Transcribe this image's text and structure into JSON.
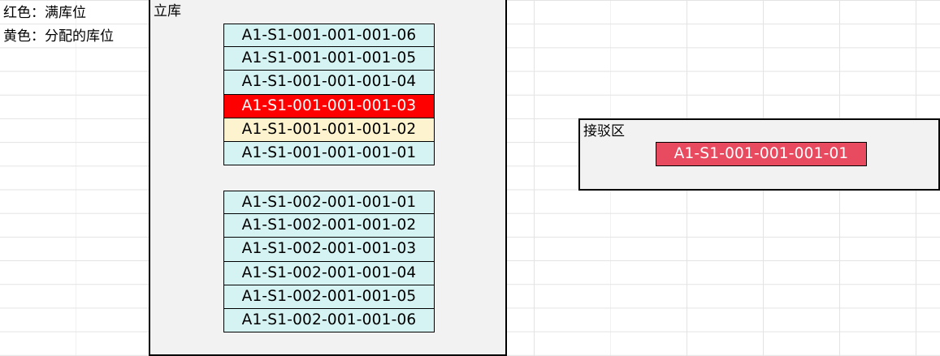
{
  "legend": {
    "red": "红色：满库位",
    "yellow": "黄色：分配的库位"
  },
  "warehouse": {
    "title": "立库",
    "group1": [
      {
        "label": "A1-S1-001-001-001-06",
        "status": "normal"
      },
      {
        "label": "A1-S1-001-001-001-05",
        "status": "normal"
      },
      {
        "label": "A1-S1-001-001-001-04",
        "status": "normal"
      },
      {
        "label": "A1-S1-001-001-001-03",
        "status": "full"
      },
      {
        "label": "A1-S1-001-001-001-02",
        "status": "allocated"
      },
      {
        "label": "A1-S1-001-001-001-01",
        "status": "normal"
      }
    ],
    "group2": [
      {
        "label": "A1-S1-002-001-001-01",
        "status": "normal"
      },
      {
        "label": "A1-S1-002-001-001-02",
        "status": "normal"
      },
      {
        "label": "A1-S1-002-001-001-03",
        "status": "normal"
      },
      {
        "label": "A1-S1-002-001-001-04",
        "status": "normal"
      },
      {
        "label": "A1-S1-002-001-001-05",
        "status": "normal"
      },
      {
        "label": "A1-S1-002-001-001-06",
        "status": "normal"
      }
    ]
  },
  "dock": {
    "title": "接驳区",
    "slot": {
      "label": "A1-S1-001-001-001-01"
    }
  },
  "colors": {
    "normal_slot": "#d6f3f3",
    "full_slot": "#ff0000",
    "allocated_slot": "#fdf3cf",
    "dock_slot": "#e84a5f",
    "panel_bg": "#f2f2f2"
  }
}
